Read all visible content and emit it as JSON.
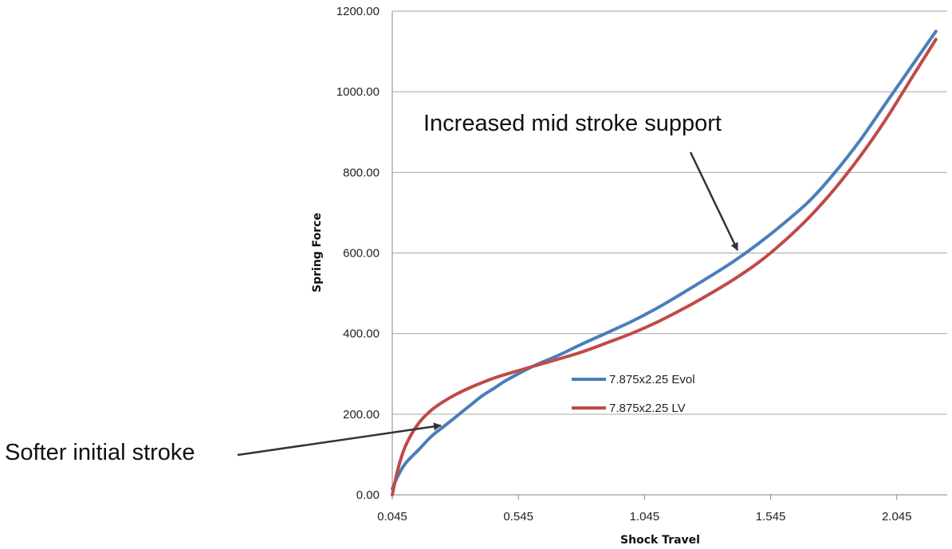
{
  "chart_data": {
    "type": "line",
    "title": "",
    "xlabel": "Shock Travel",
    "ylabel": "Spring Force",
    "xlim": [
      0.045,
      2.245
    ],
    "ylim": [
      0,
      1200
    ],
    "x_ticks": [
      "0.045",
      "0.545",
      "1.045",
      "1.545",
      "2.045"
    ],
    "y_ticks": [
      "0.00",
      "200.00",
      "400.00",
      "600.00",
      "800.00",
      "1000.00",
      "1200.00"
    ],
    "grid": "horizontal",
    "legend_position": "center",
    "series": [
      {
        "name": "7.875x2.25 Evol",
        "color": "#4a7ebb",
        "x": [
          0.045,
          0.07,
          0.1,
          0.15,
          0.2,
          0.25,
          0.3,
          0.35,
          0.4,
          0.45,
          0.5,
          0.6,
          0.7,
          0.8,
          0.9,
          1.0,
          1.1,
          1.2,
          1.3,
          1.4,
          1.5,
          1.6,
          1.7,
          1.8,
          1.9,
          2.0,
          2.1,
          2.2
        ],
        "values": [
          15,
          50,
          80,
          112,
          145,
          170,
          195,
          220,
          245,
          265,
          285,
          318,
          345,
          375,
          403,
          432,
          465,
          502,
          540,
          580,
          625,
          675,
          730,
          800,
          880,
          970,
          1060,
          1150
        ]
      },
      {
        "name": "7.875x2.25 LV",
        "color": "#be4b48",
        "x": [
          0.045,
          0.07,
          0.1,
          0.15,
          0.2,
          0.25,
          0.3,
          0.35,
          0.4,
          0.45,
          0.5,
          0.6,
          0.7,
          0.8,
          0.9,
          1.0,
          1.1,
          1.2,
          1.3,
          1.4,
          1.5,
          1.6,
          1.7,
          1.8,
          1.9,
          2.0,
          2.1,
          2.2
        ],
        "values": [
          0,
          70,
          125,
          178,
          210,
          232,
          250,
          265,
          278,
          290,
          300,
          318,
          336,
          355,
          378,
          402,
          430,
          462,
          497,
          535,
          578,
          630,
          690,
          760,
          840,
          930,
          1030,
          1130
        ]
      }
    ],
    "annotations": [
      {
        "text": "Increased mid stroke support",
        "target_x": 1.445,
        "target_y": 600
      },
      {
        "text": "Softer initial stroke",
        "target_x": 0.345,
        "target_y": 170
      }
    ]
  }
}
